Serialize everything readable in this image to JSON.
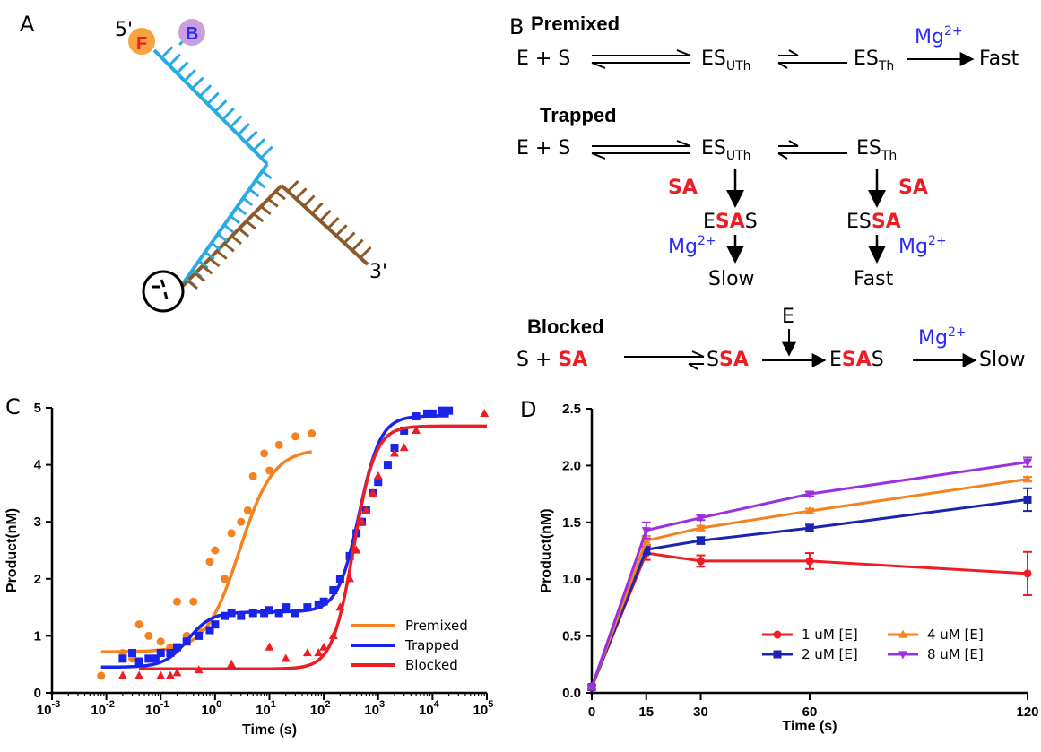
{
  "panels": {
    "a": "A",
    "b": "B",
    "c": "C",
    "d": "D"
  },
  "panel_a": {
    "label_5p": "5'",
    "label_3p": "3'",
    "label_f": "F",
    "label_b": "B",
    "colors": {
      "strand1": "#29abe2",
      "strand2": "#8b5a2b",
      "f_circle": "#f7a440",
      "b_circle": "#c9a0dc"
    }
  },
  "scheme": {
    "premixed": {
      "title": "Premixed",
      "es_uth": "ES",
      "uth": "UTh",
      "es_th": "ES",
      "th": "Th",
      "es": "E + S",
      "mg": "Mg",
      "mg_sup": "2+",
      "product": "Fast"
    },
    "trapped": {
      "title": "Trapped",
      "es": "E + S",
      "es_uth": "ES",
      "uth": "UTh",
      "es_th": "ES",
      "th": "Th",
      "sa_left": "SA",
      "sa_right": "SA",
      "esas_e": "E",
      "esas_sa": "SA",
      "esas_s": "S",
      "essa_es": "ES",
      "essa_sa": "SA",
      "mg": "Mg",
      "mg_sup": "2+",
      "slow": "Slow",
      "fast": "Fast"
    },
    "blocked": {
      "title": "Blocked",
      "s_plus": "S + ",
      "sa": "SA",
      "ssa_s": "S",
      "e_in": "E",
      "esas_e": "E",
      "esas_s": "S",
      "mg": "Mg",
      "mg_sup": "2+",
      "slow": "Slow"
    }
  },
  "chart_data": [
    {
      "panel": "C",
      "type": "scatter",
      "xlabel": "Time (s)",
      "ylabel": "Product(nM)",
      "xscale": "log",
      "xlim": [
        0.001,
        100000
      ],
      "ylim": [
        0,
        5
      ],
      "x_ticks": [
        "10",
        "10",
        "10",
        "10",
        "10",
        "10",
        "10",
        "10",
        "10"
      ],
      "x_tick_exponents": [
        "-3",
        "-2",
        "-1",
        "0",
        "1",
        "2",
        "3",
        "4",
        "5"
      ],
      "y_ticks": [
        "0",
        "1",
        "2",
        "3",
        "4",
        "5"
      ],
      "legend_position": "bottom-right",
      "series": [
        {
          "name": "Premixed",
          "color": "#f58220",
          "marker": "circle",
          "x": [
            0.008,
            0.02,
            0.03,
            0.04,
            0.06,
            0.1,
            0.15,
            0.2,
            0.3,
            0.4,
            0.5,
            0.8,
            1.0,
            1.5,
            2.0,
            3.0,
            4.0,
            5.0,
            8.0,
            10.0,
            15.0,
            30.0,
            60.0
          ],
          "y": [
            0.3,
            0.7,
            0.6,
            1.2,
            1.0,
            0.9,
            0.8,
            1.6,
            1.0,
            1.6,
            1.1,
            2.3,
            2.5,
            2.0,
            2.8,
            3.0,
            3.2,
            3.8,
            4.2,
            3.9,
            4.35,
            4.5,
            4.55
          ],
          "fit": {
            "kind": "sigmoid",
            "bottom": 0.72,
            "top": 4.28,
            "log_mid": 0.45,
            "slope": 1.4,
            "x_range": [
              0.008,
              60
            ]
          }
        },
        {
          "name": "Trapped",
          "color": "#1a24e8",
          "marker": "square",
          "x": [
            0.02,
            0.03,
            0.04,
            0.06,
            0.08,
            0.1,
            0.15,
            0.2,
            0.3,
            0.5,
            0.8,
            1.0,
            1.5,
            2.0,
            3.0,
            5.0,
            8.0,
            10.0,
            15.0,
            20.0,
            30.0,
            50.0,
            80.0,
            100.0,
            150.0,
            200.0,
            300.0,
            400.0,
            500.0,
            600.0,
            800.0,
            1000.0,
            1500.0,
            2000.0,
            3000.0,
            5000.0,
            8000.0,
            10000.0,
            15000.0,
            20000.0
          ],
          "y": [
            0.6,
            0.7,
            0.55,
            0.6,
            0.6,
            0.7,
            0.7,
            0.8,
            0.9,
            1.0,
            1.1,
            1.2,
            1.35,
            1.4,
            1.35,
            1.4,
            1.4,
            1.45,
            1.4,
            1.5,
            1.4,
            1.5,
            1.55,
            1.6,
            1.8,
            2.0,
            2.4,
            2.8,
            3.0,
            3.2,
            3.5,
            3.7,
            4.0,
            4.3,
            4.6,
            4.85,
            4.9,
            4.9,
            4.95,
            4.95
          ],
          "fit": {
            "kind": "biphasic",
            "bottom": 0.45,
            "mid": 1.42,
            "top": 4.86,
            "log_mid1": -0.5,
            "slope1": 2.0,
            "log_mid2": 2.65,
            "slope2": 2.2,
            "x_range": [
              0.008,
              20000
            ]
          }
        },
        {
          "name": "Blocked",
          "color": "#ee1c24",
          "marker": "triangle",
          "x": [
            0.02,
            0.04,
            0.1,
            0.15,
            0.2,
            0.5,
            2.0,
            10.0,
            20.0,
            50.0,
            80.0,
            100.0,
            150.0,
            200.0,
            300.0,
            400.0,
            500.0,
            600.0,
            800.0,
            1000.0,
            2000.0,
            3000.0,
            5000.0,
            90000.0
          ],
          "y": [
            0.3,
            0.3,
            0.3,
            0.3,
            0.35,
            0.4,
            0.5,
            0.8,
            0.6,
            0.7,
            0.7,
            0.8,
            1.0,
            1.5,
            2.0,
            2.5,
            3.0,
            3.2,
            3.5,
            3.8,
            4.2,
            4.3,
            4.6,
            4.9
          ],
          "fit": {
            "kind": "sigmoid",
            "bottom": 0.42,
            "top": 4.68,
            "log_mid": 2.55,
            "slope": 2.2,
            "x_range": [
              0.04,
              100000
            ]
          }
        }
      ]
    },
    {
      "panel": "D",
      "type": "line",
      "xlabel": "Time (s)",
      "ylabel": "Product(nM)",
      "xlim": [
        0,
        120
      ],
      "ylim": [
        0,
        2.5
      ],
      "x_ticks": [
        "0",
        "15",
        "30",
        "60",
        "120"
      ],
      "y_ticks": [
        "0.0",
        "0.5",
        "1.0",
        "1.5",
        "2.0",
        "2.5"
      ],
      "legend_position": "bottom-right",
      "x": [
        0,
        15,
        30,
        60,
        120
      ],
      "series": [
        {
          "name": "1 uM [E]",
          "color": "#ee1c24",
          "marker": "circle",
          "values": [
            0.05,
            1.23,
            1.16,
            1.16,
            1.05
          ],
          "errors": [
            0.02,
            0.06,
            0.05,
            0.07,
            0.19
          ]
        },
        {
          "name": "2 uM [E]",
          "color": "#1a24b0",
          "marker": "square",
          "values": [
            0.05,
            1.26,
            1.34,
            1.45,
            1.7
          ],
          "errors": [
            0.02,
            0.04,
            0.03,
            0.03,
            0.1
          ]
        },
        {
          "name": "4 uM [E]",
          "color": "#f58220",
          "marker": "triangle",
          "values": [
            0.05,
            1.34,
            1.45,
            1.6,
            1.88
          ],
          "errors": [
            0.02,
            0.04,
            0.02,
            0.02,
            0.02
          ]
        },
        {
          "name": "8 uM [E]",
          "color": "#9b30e0",
          "marker": "triangle-down",
          "values": [
            0.05,
            1.43,
            1.54,
            1.75,
            2.03
          ],
          "errors": [
            0.02,
            0.07,
            0.02,
            0.02,
            0.04
          ]
        }
      ]
    }
  ]
}
